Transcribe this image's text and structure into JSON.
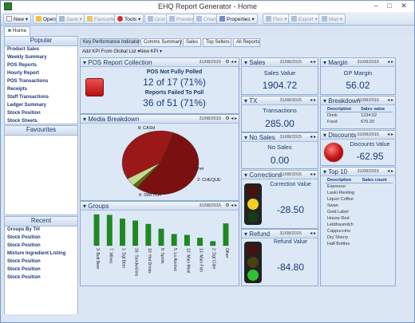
{
  "window": {
    "title": "EHQ Report Generator - Home"
  },
  "toolbar": {
    "new": "New",
    "open": "Open",
    "save": "Save",
    "favourite": "Favourite",
    "tools": "Tools",
    "grid": "Grid",
    "preview": "Preview",
    "chart": "Chart",
    "properties": "Properties",
    "flex": "Flex",
    "export": "Export",
    "mail": "Mail"
  },
  "tabs": {
    "home": "Home"
  },
  "left": {
    "popular_title": "Popular",
    "popular": [
      "Product Sales",
      "Weekly Summary",
      "POS Reports",
      "Hourly Report",
      "POS Transactions",
      "Receipts",
      "Staff Transactions",
      "Ledger Summary",
      "Stock Position",
      "Stock Sheets"
    ],
    "favourites_title": "Favourites",
    "recent_title": "Recent",
    "recent": [
      "Groups By Till",
      "Stock Position",
      "Stock Position",
      "Mixture Ingredient Listing",
      "Stock Position",
      "Stock Position",
      "Stock Position"
    ]
  },
  "subtabs": [
    "Key Performance Indicators",
    "Comms Summary",
    "Sales",
    "Top Sellers",
    "All Reports"
  ],
  "kpibar": {
    "add": "Add KPI From Global List",
    "new": "New KPI"
  },
  "date": "31/08/2015",
  "pos": {
    "title": "POS Report Collection",
    "l1": "POS Not Fully Polled",
    "v1": "12 of 17 (71%)",
    "l2": "Reports Failed To Poll",
    "v2": "36 of 51 (71%)"
  },
  "media": {
    "title": "Media Breakdown",
    "labels": [
      "8: CASH",
      "Other",
      "2: CHEQUE",
      "6: SWITCH"
    ],
    "colors": [
      "#7a1010",
      "#5a6a10",
      "#c8d890",
      "#9a1818"
    ]
  },
  "groups": {
    "title": "Groups"
  },
  "sales": {
    "title": "Sales",
    "label": "Sales Value",
    "value": "1904.72"
  },
  "tx": {
    "title": "TX",
    "label": "Transactions",
    "value": "285.00"
  },
  "nosales": {
    "title": "No Sales",
    "label": "No Sales",
    "value": "0.00"
  },
  "corrections": {
    "title": "Corrections",
    "label": "Correction Value",
    "value": "-28.50"
  },
  "refund": {
    "title": "Refund",
    "label": "Refund Value",
    "value": "-84.80"
  },
  "margin": {
    "title": "Margin",
    "label": "GP Margin",
    "value": "56.02"
  },
  "breakdown": {
    "title": "Breakdown",
    "h1": "Description",
    "h2": "Sales value",
    "rows": [
      [
        "Drink",
        "1234.52"
      ],
      [
        "Food",
        "670.20"
      ]
    ]
  },
  "discounts": {
    "title": "Discounts",
    "label": "Discounts Value",
    "value": "-62.95"
  },
  "top10": {
    "title": "Top 10",
    "h1": "Description",
    "h2": "Sales count",
    "rows": [
      "Espresso",
      "Laski Riesling",
      "Liquor Coffee",
      "Swan",
      "Gold Label",
      "House Red",
      "Leibfraumilch",
      "Cappuccino",
      "Dry Sherry",
      "Half Bottles"
    ]
  },
  "chart_data": [
    {
      "type": "pie",
      "title": "Media Breakdown",
      "labels": [
        "8: CASH",
        "Other",
        "2: CHEQUE",
        "6: SWITCH"
      ],
      "values": [
        55,
        2,
        4,
        39
      ]
    },
    {
      "type": "bar",
      "title": "Groups",
      "categories": [
        "3: Bott Beer",
        "7: Wines",
        "1: Dgt Beer",
        "16: Sandwiches",
        "10: Hot Drinks",
        "8: Spirits",
        "5: Lo Alcohol",
        "12: Main Meal",
        "13: Main Fish",
        "2: Dgt Cider",
        "Other"
      ],
      "values": [
        325,
        320,
        280,
        260,
        225,
        175,
        120,
        110,
        80,
        45,
        230
      ],
      "ylim": [
        0,
        350
      ]
    }
  ]
}
